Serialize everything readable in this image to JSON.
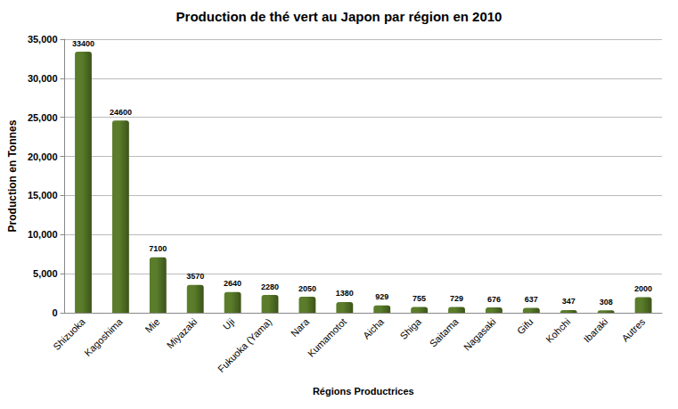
{
  "chart_data": {
    "type": "bar",
    "title": "Production de thé vert au Japon par région en 2010",
    "x_label": "Régions Productrices",
    "y_label": "Production en Tonnes",
    "categories": [
      "Shizuoka",
      "Kagoshima",
      "Mie",
      "Miyazaki",
      "Uji",
      "Fukuoka (Yama)",
      "Nara",
      "Kumamotot",
      "Aicha",
      "Shiga",
      "Saitama",
      "Nagasaki",
      "Gifu",
      "Kohchi",
      "Ibaraki",
      "Autres"
    ],
    "values": [
      33400,
      24600,
      7100,
      3570,
      2640,
      2280,
      2050,
      1380,
      929,
      755,
      729,
      676,
      637,
      347,
      308,
      2000
    ],
    "color": "#5b7d2b",
    "ylim": [
      0,
      35000
    ],
    "yticks": [
      0,
      5000,
      10000,
      15000,
      20000,
      25000,
      30000,
      35000
    ],
    "grid": true,
    "data_labels": true
  }
}
